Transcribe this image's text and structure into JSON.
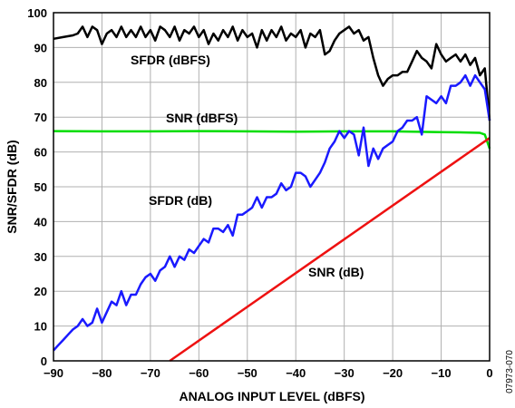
{
  "figure_id": "07973-070",
  "chart_data": {
    "type": "line",
    "xlabel": "ANALOG INPUT LEVEL (dBFS)",
    "ylabel": "SNR/SFDR (dB)",
    "xlim": [
      -90,
      0
    ],
    "ylim": [
      0,
      100
    ],
    "xticks": [
      -90,
      -80,
      -70,
      -60,
      -50,
      -40,
      -30,
      -20,
      -10,
      0
    ],
    "yticks": [
      0,
      10,
      20,
      30,
      40,
      50,
      60,
      70,
      80,
      90,
      100
    ],
    "grid": true,
    "series": [
      {
        "name": "SFDR (dBFS)",
        "color": "#000000",
        "x": [
          -90,
          -88,
          -86,
          -85,
          -84,
          -83,
          -82,
          -81,
          -80,
          -79,
          -78,
          -77,
          -76,
          -75,
          -74,
          -73,
          -72,
          -71,
          -70,
          -69,
          -68,
          -67,
          -66,
          -65,
          -64,
          -63,
          -62,
          -61,
          -60,
          -59,
          -58,
          -57,
          -56,
          -55,
          -54,
          -53,
          -52,
          -51,
          -50,
          -49,
          -48,
          -47,
          -46,
          -45,
          -44,
          -43,
          -42,
          -41,
          -40,
          -39,
          -38,
          -37,
          -36,
          -35,
          -34,
          -33,
          -32,
          -31,
          -30,
          -29,
          -28,
          -27,
          -26,
          -25,
          -24,
          -23,
          -22,
          -21,
          -20,
          -19,
          -18,
          -17,
          -16,
          -15,
          -14,
          -13,
          -12,
          -11,
          -10,
          -9,
          -8,
          -7,
          -6,
          -5,
          -4,
          -3,
          -2,
          -1,
          0
        ],
        "y": [
          92.5,
          93,
          93.5,
          94,
          96,
          93,
          96,
          95,
          91,
          94,
          95,
          93,
          96,
          93,
          95,
          93,
          96,
          93,
          95,
          92,
          96,
          95,
          93,
          96,
          92,
          95,
          94,
          96,
          93,
          95,
          91,
          94,
          92,
          95,
          93,
          96,
          92,
          95,
          93,
          94,
          90,
          95,
          92,
          95,
          93,
          96,
          92,
          94,
          93,
          95,
          90,
          94,
          93,
          95,
          88,
          89,
          92,
          94,
          95,
          96,
          94,
          95,
          92,
          93,
          87,
          82,
          79,
          81,
          82,
          82,
          83,
          83,
          86,
          89,
          87,
          86,
          84,
          91,
          88,
          86,
          87,
          88,
          86,
          88,
          85,
          87,
          82,
          84,
          69
        ]
      },
      {
        "name": "SNR (dBFS)",
        "color": "#00dd00",
        "x": [
          -90,
          -80,
          -70,
          -60,
          -50,
          -40,
          -30,
          -20,
          -10,
          -5,
          -2,
          -1,
          0
        ],
        "y": [
          66,
          65.9,
          65.9,
          66,
          65.9,
          65.8,
          65.9,
          65.9,
          65.7,
          65.6,
          65.5,
          65,
          61
        ]
      },
      {
        "name": "SFDR (dB)",
        "color": "#1a1aff",
        "x": [
          -90,
          -89,
          -88,
          -87,
          -86,
          -85,
          -84,
          -83,
          -82,
          -81,
          -80,
          -79,
          -78,
          -77,
          -76,
          -75,
          -74,
          -73,
          -72,
          -71,
          -70,
          -69,
          -68,
          -67,
          -66,
          -65,
          -64,
          -63,
          -62,
          -61,
          -60,
          -59,
          -58,
          -57,
          -56,
          -55,
          -54,
          -53,
          -52,
          -51,
          -50,
          -49,
          -48,
          -47,
          -46,
          -45,
          -44,
          -43,
          -42,
          -41,
          -40,
          -39,
          -38,
          -37,
          -36,
          -35,
          -34,
          -33,
          -32,
          -31,
          -30,
          -29,
          -28,
          -27,
          -26,
          -25,
          -24,
          -23,
          -22,
          -21,
          -20,
          -19,
          -18,
          -17,
          -16,
          -15,
          -14,
          -13,
          -12,
          -11,
          -10,
          -9,
          -8,
          -7,
          -6,
          -5,
          -4,
          -3,
          -2,
          -1,
          0
        ],
        "y": [
          3,
          4.5,
          6,
          7.5,
          9,
          10,
          12,
          10,
          11,
          15,
          11,
          14,
          17,
          16,
          20,
          16,
          19,
          19,
          22,
          24,
          25,
          23,
          26,
          27,
          30,
          27,
          30,
          29,
          32,
          31,
          33,
          35,
          34,
          38,
          38,
          37,
          39,
          36,
          42,
          42,
          43,
          44,
          47,
          44,
          47,
          47,
          48,
          51,
          49,
          50,
          54,
          54,
          53,
          50,
          52,
          54,
          57,
          61,
          63,
          66,
          64,
          66,
          65,
          59,
          67,
          56,
          61,
          58,
          61,
          62,
          63,
          66,
          67,
          69,
          69,
          70,
          65,
          76,
          75,
          74,
          76,
          74,
          79,
          79,
          80,
          82,
          79,
          82,
          80,
          78,
          69
        ]
      },
      {
        "name": "SNR (dB)",
        "color": "#ee1111",
        "x": [
          -66,
          0
        ],
        "y": [
          0,
          64
        ]
      }
    ],
    "labels": {
      "sfdr_dbfs": "SFDR (dBFS)",
      "snr_dbfs": "SNR (dBFS)",
      "sfdr_db": "SFDR (dB)",
      "snr_db": "SNR (dB)"
    }
  }
}
